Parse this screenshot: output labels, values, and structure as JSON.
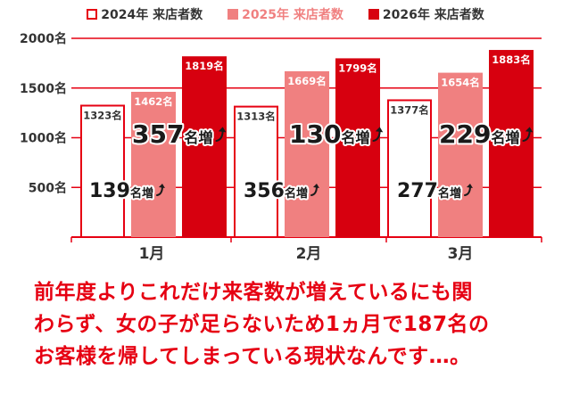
{
  "legend": [
    {
      "label": "2024年 来店者数",
      "color": "#ffffff",
      "border": "#e60012",
      "text_color": "#333333"
    },
    {
      "label": "2025年 来店者数",
      "color": "#f08080",
      "border": "#f08080",
      "text_color": "#f08080"
    },
    {
      "label": "2026年 来店者数",
      "color": "#d7000f",
      "border": "#d7000f",
      "text_color": "#333333"
    }
  ],
  "chart_data": {
    "type": "bar",
    "categories": [
      "1月",
      "2月",
      "3月"
    ],
    "series": [
      {
        "name": "2024年 来店者数",
        "values": [
          1323,
          1313,
          1377
        ],
        "labels": [
          "1323名",
          "1313名",
          "1377名"
        ]
      },
      {
        "name": "2025年 来店者数",
        "values": [
          1462,
          1669,
          1654
        ],
        "labels": [
          "1462名",
          "1669名",
          "1654名"
        ]
      },
      {
        "name": "2026年 来店者数",
        "values": [
          1819,
          1799,
          1883
        ],
        "labels": [
          "1819名",
          "1799名",
          "1883名"
        ]
      }
    ],
    "ylim": [
      0,
      2000
    ],
    "y_ticks": [
      {
        "value": 500,
        "label": "500名"
      },
      {
        "value": 1000,
        "label": "1000名"
      },
      {
        "value": 1500,
        "label": "1500名"
      },
      {
        "value": 2000,
        "label": "2000名"
      }
    ],
    "annotations": [
      {
        "category": 0,
        "kind": "2024-2025",
        "num": "139",
        "unit": "名増"
      },
      {
        "category": 0,
        "kind": "2025-2026",
        "num": "357",
        "unit": "名増"
      },
      {
        "category": 1,
        "kind": "2024-2025",
        "num": "356",
        "unit": "名増"
      },
      {
        "category": 1,
        "kind": "2025-2026",
        "num": "130",
        "unit": "名増"
      },
      {
        "category": 2,
        "kind": "2024-2025",
        "num": "277",
        "unit": "名増"
      },
      {
        "category": 2,
        "kind": "2025-2026",
        "num": "229",
        "unit": "名増"
      }
    ],
    "grid": true,
    "colors": {
      "red": "#e60012",
      "pink": "#f08080",
      "dark_red": "#d7000f",
      "grid": "#e60012",
      "text": "#222222"
    }
  },
  "caption": {
    "lines": [
      "前年度よりこれだけ来客数が増えているにも関",
      "わらず、女の子が足らないため1ヵ月で187名の",
      "お客様を帰してしまっている現状なんです…。"
    ]
  }
}
